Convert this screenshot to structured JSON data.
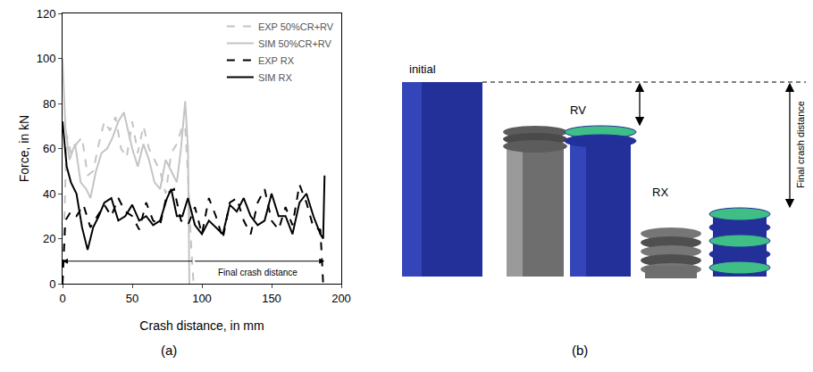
{
  "figure": {
    "panel_labels": [
      "(a)",
      "(b)"
    ]
  },
  "chart_data": {
    "type": "line",
    "x_label": "Crash distance, in mm",
    "y_label": "Force, in kN",
    "xlim": [
      0,
      200
    ],
    "xticks": [
      0,
      50,
      100,
      150,
      200
    ],
    "ylim": [
      0,
      120
    ],
    "yticks": [
      0,
      20,
      40,
      60,
      80,
      100,
      120
    ],
    "grid": false,
    "legend": "upper right",
    "series": [
      {
        "name": "EXP 50%CR+RV",
        "color": "#c4c4c4",
        "line_style": "dash",
        "x": [
          0,
          3,
          6,
          10,
          14,
          18,
          22,
          26,
          30,
          34,
          38,
          42,
          46,
          50,
          54,
          58,
          62,
          66,
          70,
          74,
          78,
          82,
          86,
          88,
          90,
          92,
          94
        ],
        "values": [
          0,
          66,
          58,
          62,
          65,
          48,
          50,
          62,
          72,
          68,
          74,
          60,
          56,
          72,
          58,
          70,
          60,
          55,
          50,
          40,
          58,
          62,
          70,
          70,
          48,
          20,
          0
        ]
      },
      {
        "name": "SIM 50%CR+RV",
        "color": "#c4c4c4",
        "line_style": "solid",
        "x": [
          0,
          2,
          5,
          9,
          13,
          17,
          20,
          24,
          28,
          32,
          36,
          40,
          44,
          47,
          50,
          54,
          58,
          62,
          66,
          70,
          74,
          78,
          82,
          85,
          88,
          90,
          91
        ],
        "values": [
          100,
          70,
          55,
          62,
          45,
          42,
          38,
          50,
          58,
          60,
          65,
          72,
          76,
          68,
          60,
          52,
          62,
          55,
          45,
          42,
          55,
          50,
          45,
          60,
          81,
          60,
          0
        ]
      },
      {
        "name": "EXP RX",
        "color": "#000000",
        "line_style": "dash",
        "x": [
          0,
          2,
          6,
          10,
          15,
          20,
          25,
          30,
          35,
          40,
          45,
          50,
          55,
          60,
          65,
          70,
          75,
          80,
          85,
          90,
          95,
          100,
          105,
          110,
          115,
          120,
          125,
          130,
          135,
          140,
          145,
          150,
          155,
          160,
          165,
          170,
          175,
          180,
          185,
          187
        ],
        "values": [
          0,
          28,
          32,
          30,
          35,
          25,
          30,
          35,
          30,
          38,
          32,
          30,
          24,
          36,
          28,
          26,
          40,
          42,
          28,
          26,
          34,
          22,
          38,
          30,
          20,
          36,
          38,
          28,
          22,
          36,
          42,
          28,
          24,
          34,
          26,
          44,
          36,
          25,
          24,
          0
        ]
      },
      {
        "name": "SIM RX",
        "color": "#000000",
        "line_style": "solid",
        "x": [
          0,
          3,
          6,
          10,
          14,
          18,
          22,
          26,
          30,
          35,
          40,
          45,
          50,
          55,
          60,
          65,
          70,
          75,
          78,
          82,
          86,
          90,
          95,
          100,
          105,
          110,
          115,
          120,
          125,
          130,
          135,
          140,
          145,
          150,
          155,
          160,
          165,
          170,
          175,
          180,
          185,
          187,
          188
        ],
        "values": [
          72,
          52,
          45,
          40,
          25,
          15,
          25,
          30,
          36,
          38,
          28,
          30,
          35,
          28,
          30,
          26,
          28,
          38,
          42,
          30,
          30,
          38,
          26,
          22,
          28,
          25,
          22,
          35,
          32,
          38,
          30,
          26,
          28,
          40,
          30,
          30,
          22,
          36,
          40,
          30,
          22,
          20,
          48
        ]
      }
    ],
    "annotations": [
      {
        "text": "Final crash distance",
        "x": 140,
        "y": 5,
        "arrow_from": 0,
        "arrow_to": 188,
        "arrow_y": 10
      }
    ]
  },
  "diagram": {
    "labels": {
      "initial": "initial",
      "rv": "RV",
      "rx": "RX"
    },
    "dimension_label": "Final crash distance"
  }
}
